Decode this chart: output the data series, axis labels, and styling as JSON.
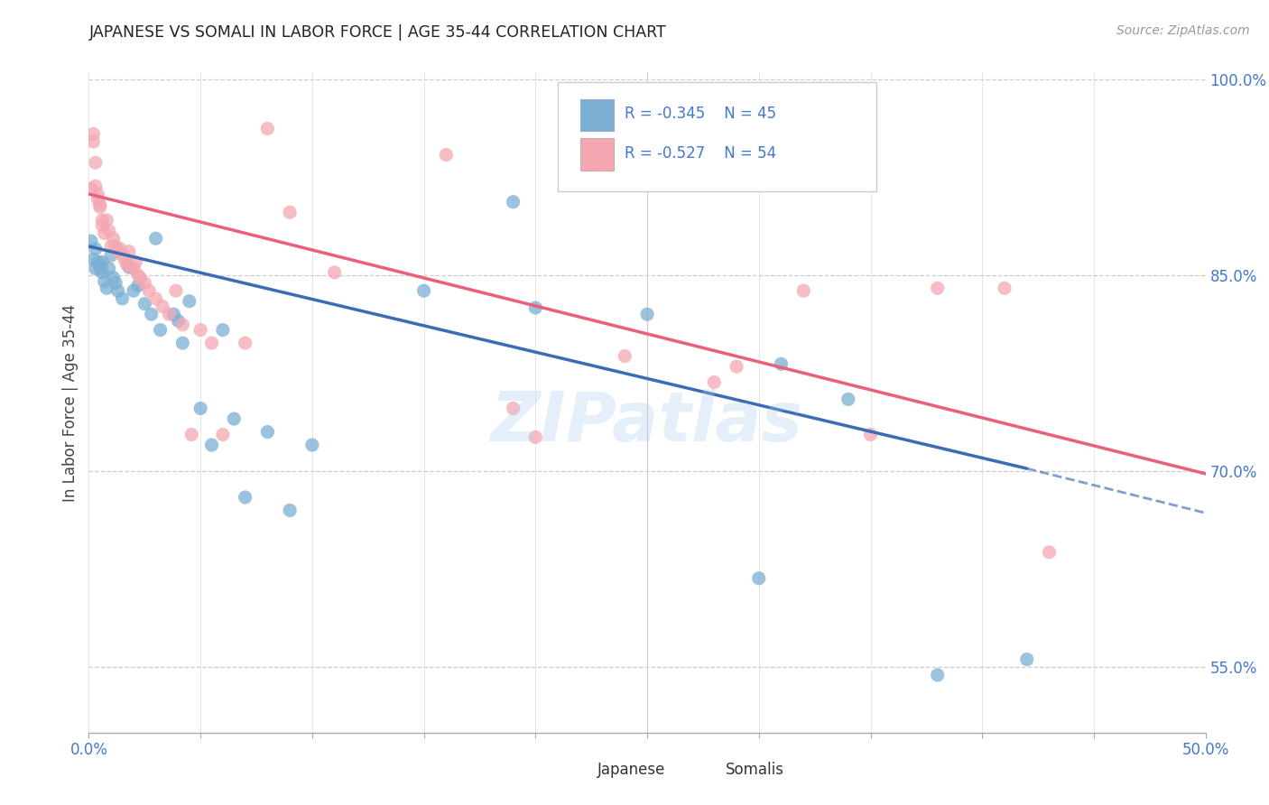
{
  "title": "JAPANESE VS SOMALI IN LABOR FORCE | AGE 35-44 CORRELATION CHART",
  "source": "Source: ZipAtlas.com",
  "ylabel": "In Labor Force | Age 35-44",
  "xlim": [
    0.0,
    0.5
  ],
  "ylim": [
    0.5,
    1.005
  ],
  "xticks": [
    0.0,
    0.05,
    0.1,
    0.15,
    0.2,
    0.25,
    0.3,
    0.35,
    0.4,
    0.45,
    0.5
  ],
  "yticks_right": [
    0.55,
    0.7,
    0.85,
    1.0
  ],
  "ytick_labels_right": [
    "55.0%",
    "70.0%",
    "85.0%",
    "100.0%"
  ],
  "japanese_color": "#7BAFD4",
  "somali_color": "#F4A7B0",
  "japanese_line_color": "#3B6CB5",
  "somali_line_color": "#E8607A",
  "axis_text_color": "#4477CC",
  "watermark": "ZIPatlas",
  "jap_line_x0": 0.0,
  "jap_line_y0": 0.872,
  "jap_line_x1": 0.42,
  "jap_line_y1": 0.702,
  "jap_line_xdash": 0.5,
  "jap_line_ydash": 0.668,
  "som_line_x0": 0.0,
  "som_line_y0": 0.912,
  "som_line_x1": 0.5,
  "som_line_y1": 0.698,
  "japanese_x": [
    0.001,
    0.002,
    0.003,
    0.003,
    0.004,
    0.005,
    0.005,
    0.006,
    0.006,
    0.007,
    0.008,
    0.009,
    0.01,
    0.011,
    0.012,
    0.013,
    0.015,
    0.018,
    0.02,
    0.022,
    0.025,
    0.028,
    0.03,
    0.032,
    0.038,
    0.04,
    0.042,
    0.045,
    0.05,
    0.055,
    0.06,
    0.065,
    0.07,
    0.08,
    0.09,
    0.1,
    0.19,
    0.25,
    0.3,
    0.38,
    0.42,
    0.15,
    0.2,
    0.31,
    0.34
  ],
  "japanese_y": [
    0.876,
    0.862,
    0.855,
    0.87,
    0.86,
    0.855,
    0.858,
    0.86,
    0.852,
    0.845,
    0.84,
    0.855,
    0.865,
    0.848,
    0.844,
    0.838,
    0.832,
    0.856,
    0.838,
    0.842,
    0.828,
    0.82,
    0.878,
    0.808,
    0.82,
    0.815,
    0.798,
    0.83,
    0.748,
    0.72,
    0.808,
    0.74,
    0.68,
    0.73,
    0.67,
    0.72,
    0.906,
    0.82,
    0.618,
    0.544,
    0.556,
    0.838,
    0.825,
    0.782,
    0.755
  ],
  "somali_x": [
    0.001,
    0.002,
    0.002,
    0.003,
    0.003,
    0.004,
    0.004,
    0.005,
    0.005,
    0.006,
    0.006,
    0.007,
    0.008,
    0.009,
    0.01,
    0.011,
    0.012,
    0.013,
    0.014,
    0.015,
    0.016,
    0.017,
    0.018,
    0.019,
    0.02,
    0.021,
    0.022,
    0.023,
    0.025,
    0.027,
    0.03,
    0.033,
    0.036,
    0.039,
    0.042,
    0.046,
    0.05,
    0.055,
    0.06,
    0.08,
    0.11,
    0.16,
    0.19,
    0.2,
    0.24,
    0.28,
    0.32,
    0.35,
    0.38,
    0.43,
    0.29,
    0.41,
    0.07,
    0.09
  ],
  "somali_y": [
    0.916,
    0.958,
    0.952,
    0.936,
    0.918,
    0.912,
    0.908,
    0.902,
    0.904,
    0.892,
    0.888,
    0.882,
    0.892,
    0.884,
    0.872,
    0.878,
    0.872,
    0.868,
    0.87,
    0.866,
    0.862,
    0.858,
    0.868,
    0.856,
    0.855,
    0.86,
    0.85,
    0.848,
    0.844,
    0.838,
    0.832,
    0.826,
    0.82,
    0.838,
    0.812,
    0.728,
    0.808,
    0.798,
    0.728,
    0.962,
    0.852,
    0.942,
    0.748,
    0.726,
    0.788,
    0.768,
    0.838,
    0.728,
    0.84,
    0.638,
    0.78,
    0.84,
    0.798,
    0.898
  ]
}
